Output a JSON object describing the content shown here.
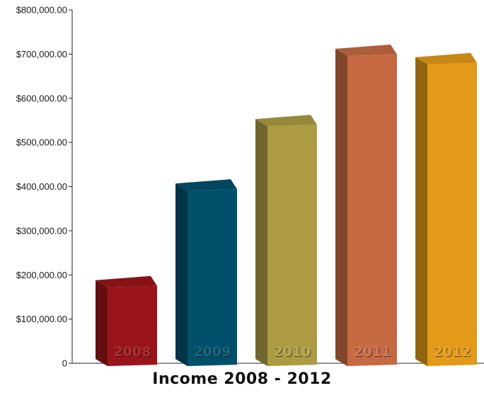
{
  "chart_data": {
    "type": "bar",
    "title": "Income 2008 - 2012",
    "categories": [
      "2008",
      "2009",
      "2010",
      "2011",
      "2012"
    ],
    "values": [
      188000,
      407000,
      553000,
      712000,
      693000
    ],
    "ylim": [
      0,
      800000
    ],
    "yticks": [
      "0",
      "$100,000.00",
      "$200,000.00",
      "$300,000.00",
      "$400,000.00",
      "$500,000.00",
      "$600,000.00",
      "$700,000.00",
      "$800,000.00"
    ],
    "colors": [
      "#9a151b",
      "#00506b",
      "#ac9b43",
      "#c66a43",
      "#e29a18"
    ],
    "grid": false,
    "style": "3d-bars"
  }
}
